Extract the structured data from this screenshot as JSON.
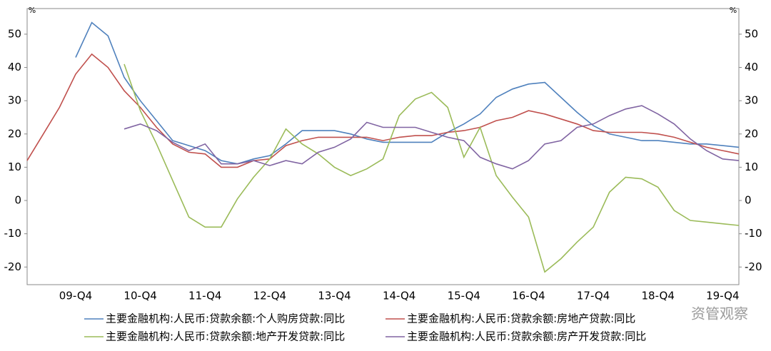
{
  "chart_data": {
    "type": "line",
    "ylabel": "%",
    "y2label": "%",
    "watermark": "资管观察",
    "categories": [
      null,
      null,
      null,
      "09-Q4",
      null,
      null,
      null,
      "10-Q4",
      null,
      null,
      null,
      "11-Q4",
      null,
      null,
      null,
      "12-Q4",
      null,
      null,
      null,
      "13-Q4",
      null,
      null,
      null,
      "14-Q4",
      null,
      null,
      null,
      "15-Q4",
      null,
      null,
      null,
      "16-Q4",
      null,
      null,
      null,
      "17-Q4",
      null,
      null,
      null,
      "18-Q4",
      null,
      null,
      null,
      "19-Q4",
      null
    ],
    "ylim": [
      -25.3,
      57.7
    ],
    "yticks": [
      -20,
      -10,
      0,
      10,
      20,
      30,
      40,
      50
    ],
    "y2lim": [
      -25.3,
      57.7
    ],
    "y2ticks": [
      -20,
      -10,
      0,
      10,
      20,
      30,
      40,
      50
    ],
    "grid": false,
    "series": [
      {
        "name": "主要金融机构:人民币:贷款余额:个人购房贷款:同比",
        "color": "#4f81bd",
        "values": [
          null,
          null,
          null,
          43,
          53.5,
          49.5,
          37,
          30,
          24,
          18,
          16.5,
          15,
          12,
          11,
          12.5,
          13.5,
          17,
          21,
          21,
          21,
          20,
          18.5,
          17.5,
          17.5,
          17.5,
          17.5,
          20.5,
          23,
          26,
          31,
          33.5,
          35,
          35.5,
          31,
          26.5,
          22.5,
          20,
          19,
          18,
          18,
          17.5,
          17,
          17,
          16.5,
          16
        ]
      },
      {
        "name": "主要金融机构:人民币:贷款余额:房地产贷款:同比",
        "color": "#c0504d",
        "values": [
          12,
          20,
          28,
          38,
          44,
          40,
          33,
          28,
          22,
          17,
          14.5,
          14,
          10,
          10,
          12,
          12.5,
          16.5,
          18,
          19,
          19,
          19,
          19,
          18,
          19,
          19.5,
          19.5,
          20.5,
          21,
          22,
          24,
          25,
          27,
          26,
          24.5,
          23,
          21,
          20.5,
          20.5,
          20.5,
          20,
          19,
          17.5,
          16,
          15,
          14
        ]
      },
      {
        "name": "主要金融机构:人民币:贷款余额:地产开发贷款:同比",
        "color": "#9bbb59",
        "values": [
          null,
          null,
          null,
          null,
          null,
          null,
          41,
          27,
          17,
          6,
          -5,
          -8,
          -8,
          0.5,
          7,
          12.5,
          21.5,
          17,
          14,
          10,
          7.5,
          9.5,
          12.5,
          25.5,
          30.5,
          32.5,
          28,
          13,
          22,
          7.5,
          1,
          -5,
          -21.5,
          -17.5,
          -12.5,
          -8,
          2.5,
          7,
          6.5,
          4,
          -3,
          -6,
          -6.5,
          -7,
          -7.5
        ]
      },
      {
        "name": "主要金融机构:人民币:贷款余额:房产开发贷款:同比",
        "color": "#8064a2",
        "values": [
          null,
          null,
          null,
          null,
          null,
          null,
          21.5,
          23,
          21,
          17.5,
          15,
          17,
          11,
          11,
          12,
          10.5,
          12,
          11,
          14.5,
          16,
          18.5,
          23.5,
          22,
          22,
          22,
          20.5,
          19,
          18,
          13,
          11,
          9.5,
          12,
          17,
          18,
          22,
          23,
          25.5,
          27.5,
          28.5,
          26,
          23,
          18.5,
          15,
          12.5,
          12
        ]
      }
    ]
  }
}
